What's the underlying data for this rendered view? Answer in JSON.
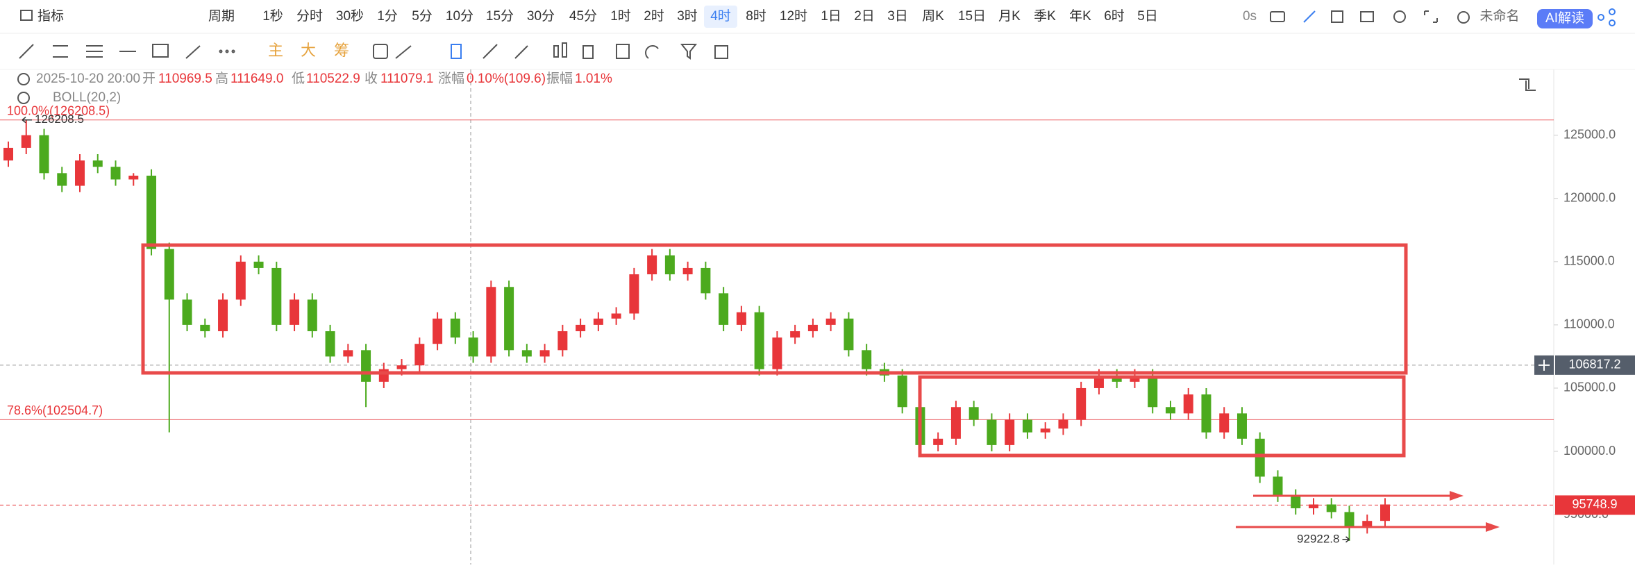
{
  "toolbar": {
    "indicator": "指标",
    "period": "周期",
    "intervals": [
      "1秒",
      "分时",
      "30秒",
      "1分",
      "5分",
      "10分",
      "15分",
      "30分",
      "45分",
      "1时",
      "2时",
      "3时",
      "4时",
      "8时",
      "12时",
      "1日",
      "2日",
      "3日",
      "周K",
      "15日",
      "月K",
      "季K",
      "年K",
      "6时",
      "5日"
    ],
    "active_interval": "4时",
    "timer": "0s",
    "layout_name": "未命名",
    "ai_button": "AI解读"
  },
  "draw_toolbar": {
    "overlays": [
      "主",
      "大",
      "筹"
    ]
  },
  "info": {
    "datetime": "2025-10-20 20:00",
    "fields": [
      {
        "label": "开",
        "value": "110969.5"
      },
      {
        "label": "高",
        "value": "111649.0"
      },
      {
        "label": "低",
        "value": "110522.9"
      },
      {
        "label": "收",
        "value": "111079.1"
      },
      {
        "label": "涨幅",
        "value": "0.10%(109.6)"
      },
      {
        "label": "振幅",
        "value": "1.01%"
      }
    ],
    "indicator": "BOLL(20,2)"
  },
  "chart_data": {
    "type": "candlestick",
    "ylim": [
      91050,
      130200
    ],
    "yticks": [
      {
        "value": 125000,
        "label": "125000.0"
      },
      {
        "value": 120000,
        "label": "120000.0"
      },
      {
        "value": 115000,
        "label": "115000.0"
      },
      {
        "value": 110000,
        "label": "110000.0"
      },
      {
        "value": 105000,
        "label": "105000.0"
      },
      {
        "value": 100000,
        "label": "100000.0"
      },
      {
        "value": 95000,
        "label": "95000.0"
      }
    ],
    "up_color": "#e8363a",
    "down_color": "#4caa1e",
    "candles": {
      "open": [
        123000,
        124000,
        125000,
        122000,
        121000,
        123000,
        122500,
        121500,
        121800,
        116000,
        112000,
        110000,
        109500,
        112000,
        115000,
        114500,
        110000,
        112000,
        109500,
        107500,
        108000,
        105500,
        106500,
        106800,
        108500,
        110500,
        109000,
        107500,
        113000,
        108000,
        107500,
        108000,
        109500,
        110000,
        110500,
        110900,
        114000,
        115500,
        114000,
        114500,
        112500,
        110000,
        111000,
        106500,
        109000,
        109500,
        110000,
        110500,
        108000,
        106500,
        106000,
        103500,
        100500,
        101000,
        103500,
        102500,
        100500,
        102500,
        101500,
        101800,
        102500,
        105000,
        106000,
        105500,
        106000,
        103500,
        103000,
        104500,
        101500,
        103000,
        101000,
        98000,
        96500,
        95500,
        95800,
        95200,
        94000,
        94500
      ],
      "high": [
        124500,
        126208.5,
        125500,
        122500,
        123500,
        123500,
        123000,
        122000,
        122300,
        116500,
        112500,
        110500,
        112500,
        115500,
        115500,
        115000,
        112500,
        112500,
        110000,
        108500,
        108500,
        107000,
        107300,
        109000,
        111000,
        111000,
        109500,
        113500,
        113500,
        108500,
        108500,
        110000,
        110500,
        111000,
        111400,
        114500,
        116000,
        116000,
        115000,
        115000,
        113000,
        111500,
        111500,
        109500,
        110000,
        110500,
        111000,
        111000,
        108500,
        107000,
        106500,
        104000,
        101500,
        104000,
        104000,
        103000,
        103000,
        103000,
        102300,
        103000,
        105500,
        106500,
        106500,
        106500,
        106500,
        104000,
        105000,
        105000,
        103500,
        103500,
        101500,
        98500,
        97000,
        96300,
        96300,
        95700,
        95000,
        96300
      ],
      "low": [
        122500,
        123500,
        121500,
        120500,
        120500,
        122000,
        121000,
        121000,
        115500,
        101500,
        109500,
        109000,
        109000,
        111500,
        114000,
        109500,
        109500,
        109000,
        107000,
        107000,
        103500,
        105000,
        106000,
        106300,
        108000,
        108500,
        107000,
        107000,
        107500,
        107000,
        107000,
        107500,
        109000,
        109500,
        110000,
        110400,
        113500,
        113500,
        113500,
        112000,
        109500,
        109500,
        106000,
        106000,
        108500,
        109000,
        109500,
        107500,
        106000,
        105500,
        103000,
        100000,
        100000,
        100500,
        102000,
        100000,
        100000,
        101000,
        101000,
        101300,
        102000,
        104500,
        105000,
        105000,
        103000,
        102500,
        102500,
        101000,
        101000,
        100500,
        97500,
        96000,
        95000,
        95000,
        94700,
        92922.8,
        93500,
        94000
      ],
      "close": [
        124000,
        125000,
        122000,
        121000,
        123000,
        122500,
        121500,
        121800,
        116000,
        112000,
        110000,
        109500,
        112000,
        115000,
        114500,
        110000,
        112000,
        109500,
        107500,
        108000,
        105500,
        106500,
        106800,
        108500,
        110500,
        109000,
        107500,
        113000,
        108000,
        107500,
        108000,
        109500,
        110000,
        110500,
        110900,
        114000,
        115500,
        114000,
        114500,
        112500,
        110000,
        111000,
        106500,
        109000,
        109500,
        110000,
        110500,
        108000,
        106500,
        106000,
        103500,
        100500,
        101000,
        103500,
        102500,
        100500,
        102500,
        101500,
        101800,
        102500,
        105000,
        106000,
        105500,
        106000,
        103500,
        103000,
        104500,
        101500,
        103000,
        101000,
        98000,
        96500,
        95500,
        95800,
        95200,
        94000,
        94500,
        95800
      ]
    },
    "fib_levels": [
      {
        "label": "100.0%(126208.5)",
        "price": 126208.5
      },
      {
        "label": "78.6%(102504.7)",
        "price": 102504.7
      }
    ],
    "high_marker": 126208.5,
    "low_marker": 92922.8,
    "crosshair_price": 106817.2,
    "last_price": 95748.9
  }
}
